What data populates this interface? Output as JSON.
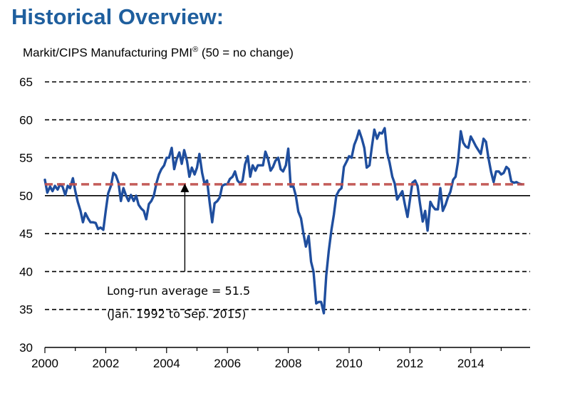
{
  "chart_data": {
    "type": "line",
    "title": "Historical Overview:",
    "subtitle_main": "Markit/CIPS Manufacturing PMI",
    "subtitle_mark": "®",
    "subtitle_note": " (50 = no change)",
    "xlabel": "",
    "ylabel": "",
    "xlim": [
      2000,
      2015.95
    ],
    "ylim": [
      30,
      65
    ],
    "x_ticks": [
      "2000",
      "2002",
      "2004",
      "2006",
      "2008",
      "2010",
      "2012",
      "2014"
    ],
    "y_ticks": [
      "30",
      "35",
      "40",
      "45",
      "50",
      "55",
      "60",
      "65"
    ],
    "grid": "horizontal-dashed",
    "reference_line": {
      "value": 51.5,
      "style": "dashed",
      "color": "#c0504d"
    },
    "baseline_value": 50,
    "annotation": {
      "line1": "Long-run average = 51.5",
      "line2": "(Jan. 1992 to Sep. 2015)",
      "arrow_x": 2004.6,
      "arrow_from_y": 40,
      "arrow_to_y": 51.5
    },
    "series": [
      {
        "color": "#1f4e9e",
        "points": [
          [
            2000.0,
            52.1
          ],
          [
            2000.08,
            50.4
          ],
          [
            2000.17,
            51.2
          ],
          [
            2000.25,
            50.6
          ],
          [
            2000.33,
            51.3
          ],
          [
            2000.42,
            50.8
          ],
          [
            2000.5,
            51.5
          ],
          [
            2000.58,
            51.2
          ],
          [
            2000.67,
            50.1
          ],
          [
            2000.75,
            51.3
          ],
          [
            2000.83,
            51.0
          ],
          [
            2000.92,
            52.3
          ],
          [
            2001.0,
            50.6
          ],
          [
            2001.08,
            49.2
          ],
          [
            2001.17,
            48.0
          ],
          [
            2001.25,
            46.5
          ],
          [
            2001.33,
            47.7
          ],
          [
            2001.42,
            47.0
          ],
          [
            2001.5,
            46.5
          ],
          [
            2001.58,
            46.5
          ],
          [
            2001.67,
            46.4
          ],
          [
            2001.75,
            45.6
          ],
          [
            2001.83,
            45.8
          ],
          [
            2001.92,
            45.5
          ],
          [
            2002.0,
            48.0
          ],
          [
            2002.08,
            50.3
          ],
          [
            2002.17,
            51.3
          ],
          [
            2002.25,
            53.0
          ],
          [
            2002.33,
            52.7
          ],
          [
            2002.42,
            51.7
          ],
          [
            2002.5,
            49.3
          ],
          [
            2002.58,
            51.0
          ],
          [
            2002.67,
            50.0
          ],
          [
            2002.75,
            49.3
          ],
          [
            2002.83,
            50.1
          ],
          [
            2002.92,
            49.3
          ],
          [
            2003.0,
            50.0
          ],
          [
            2003.08,
            48.8
          ],
          [
            2003.17,
            48.3
          ],
          [
            2003.25,
            48.0
          ],
          [
            2003.33,
            46.9
          ],
          [
            2003.42,
            48.9
          ],
          [
            2003.5,
            49.3
          ],
          [
            2003.58,
            50.0
          ],
          [
            2003.67,
            51.7
          ],
          [
            2003.75,
            52.8
          ],
          [
            2003.83,
            53.5
          ],
          [
            2003.92,
            54.0
          ],
          [
            2004.0,
            55.0
          ],
          [
            2004.08,
            55.0
          ],
          [
            2004.17,
            56.3
          ],
          [
            2004.25,
            53.5
          ],
          [
            2004.33,
            54.8
          ],
          [
            2004.42,
            55.7
          ],
          [
            2004.5,
            54.2
          ],
          [
            2004.58,
            56.0
          ],
          [
            2004.67,
            54.6
          ],
          [
            2004.75,
            52.5
          ],
          [
            2004.83,
            53.7
          ],
          [
            2004.92,
            52.8
          ],
          [
            2005.0,
            53.7
          ],
          [
            2005.08,
            55.5
          ],
          [
            2005.17,
            53.0
          ],
          [
            2005.25,
            51.5
          ],
          [
            2005.33,
            52.0
          ],
          [
            2005.42,
            49.0
          ],
          [
            2005.5,
            46.5
          ],
          [
            2005.58,
            49.0
          ],
          [
            2005.67,
            49.3
          ],
          [
            2005.75,
            49.8
          ],
          [
            2005.83,
            51.3
          ],
          [
            2005.92,
            51.5
          ],
          [
            2006.0,
            51.5
          ],
          [
            2006.08,
            52.2
          ],
          [
            2006.17,
            52.5
          ],
          [
            2006.25,
            53.2
          ],
          [
            2006.33,
            52.0
          ],
          [
            2006.42,
            51.6
          ],
          [
            2006.5,
            52.0
          ],
          [
            2006.58,
            54.1
          ],
          [
            2006.67,
            55.2
          ],
          [
            2006.75,
            52.5
          ],
          [
            2006.83,
            54.0
          ],
          [
            2006.92,
            53.3
          ],
          [
            2007.0,
            54.0
          ],
          [
            2007.08,
            54.0
          ],
          [
            2007.17,
            54.0
          ],
          [
            2007.25,
            55.8
          ],
          [
            2007.33,
            54.9
          ],
          [
            2007.42,
            53.3
          ],
          [
            2007.5,
            53.8
          ],
          [
            2007.58,
            54.6
          ],
          [
            2007.67,
            55.0
          ],
          [
            2007.75,
            53.5
          ],
          [
            2007.83,
            53.2
          ],
          [
            2007.92,
            54.0
          ],
          [
            2008.0,
            56.2
          ],
          [
            2008.08,
            51.2
          ],
          [
            2008.17,
            51.2
          ],
          [
            2008.25,
            50.0
          ],
          [
            2008.33,
            47.9
          ],
          [
            2008.42,
            47.0
          ],
          [
            2008.5,
            45.0
          ],
          [
            2008.58,
            43.3
          ],
          [
            2008.67,
            44.7
          ],
          [
            2008.75,
            41.3
          ],
          [
            2008.83,
            40.0
          ],
          [
            2008.92,
            35.8
          ],
          [
            2009.0,
            36.0
          ],
          [
            2009.08,
            36.0
          ],
          [
            2009.17,
            34.5
          ],
          [
            2009.25,
            39.5
          ],
          [
            2009.33,
            42.7
          ],
          [
            2009.42,
            45.5
          ],
          [
            2009.5,
            47.5
          ],
          [
            2009.58,
            50.0
          ],
          [
            2009.67,
            50.7
          ],
          [
            2009.75,
            51.0
          ],
          [
            2009.83,
            53.8
          ],
          [
            2009.92,
            54.5
          ],
          [
            2010.0,
            55.2
          ],
          [
            2010.08,
            55.0
          ],
          [
            2010.17,
            56.7
          ],
          [
            2010.25,
            57.5
          ],
          [
            2010.33,
            58.6
          ],
          [
            2010.42,
            57.5
          ],
          [
            2010.5,
            56.3
          ],
          [
            2010.58,
            53.7
          ],
          [
            2010.67,
            54.0
          ],
          [
            2010.75,
            56.5
          ],
          [
            2010.83,
            58.7
          ],
          [
            2010.92,
            57.5
          ],
          [
            2011.0,
            58.3
          ],
          [
            2011.08,
            58.2
          ],
          [
            2011.17,
            58.9
          ],
          [
            2011.25,
            55.7
          ],
          [
            2011.33,
            54.4
          ],
          [
            2011.42,
            52.5
          ],
          [
            2011.5,
            51.6
          ],
          [
            2011.58,
            49.5
          ],
          [
            2011.67,
            50.1
          ],
          [
            2011.75,
            50.6
          ],
          [
            2011.83,
            48.9
          ],
          [
            2011.92,
            47.2
          ],
          [
            2012.0,
            49.5
          ],
          [
            2012.08,
            51.7
          ],
          [
            2012.17,
            52.0
          ],
          [
            2012.25,
            51.3
          ],
          [
            2012.33,
            49.0
          ],
          [
            2012.42,
            46.6
          ],
          [
            2012.5,
            48.0
          ],
          [
            2012.58,
            45.4
          ],
          [
            2012.67,
            49.2
          ],
          [
            2012.75,
            48.6
          ],
          [
            2012.83,
            48.2
          ],
          [
            2012.92,
            48.2
          ],
          [
            2013.0,
            51.0
          ],
          [
            2013.08,
            48.0
          ],
          [
            2013.17,
            48.8
          ],
          [
            2013.25,
            49.8
          ],
          [
            2013.33,
            50.5
          ],
          [
            2013.42,
            52.1
          ],
          [
            2013.5,
            52.5
          ],
          [
            2013.58,
            54.5
          ],
          [
            2013.67,
            58.5
          ],
          [
            2013.75,
            57.0
          ],
          [
            2013.83,
            56.5
          ],
          [
            2013.92,
            56.3
          ],
          [
            2014.0,
            57.8
          ],
          [
            2014.08,
            57.2
          ],
          [
            2014.17,
            56.5
          ],
          [
            2014.25,
            56.0
          ],
          [
            2014.33,
            55.5
          ],
          [
            2014.42,
            57.5
          ],
          [
            2014.5,
            57.1
          ],
          [
            2014.58,
            55.0
          ],
          [
            2014.67,
            53.1
          ],
          [
            2014.75,
            51.8
          ],
          [
            2014.83,
            53.2
          ],
          [
            2014.92,
            53.2
          ],
          [
            2015.0,
            52.8
          ],
          [
            2015.08,
            53.0
          ],
          [
            2015.17,
            53.8
          ],
          [
            2015.25,
            53.5
          ],
          [
            2015.33,
            51.9
          ],
          [
            2015.42,
            51.7
          ],
          [
            2015.5,
            51.8
          ],
          [
            2015.58,
            51.6
          ],
          [
            2015.67,
            51.5
          ]
        ]
      }
    ]
  }
}
